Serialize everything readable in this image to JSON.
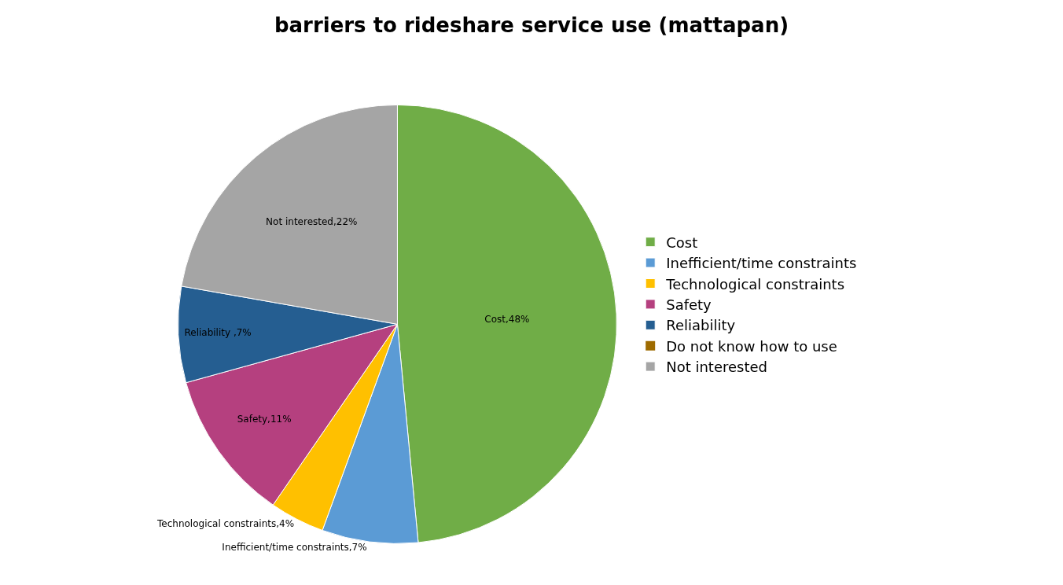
{
  "chart_data": {
    "type": "pie",
    "title": "barriers to rideshare service use (mattapan)",
    "categories": [
      "Cost",
      "Inefficient/time constraints",
      "Technological constraints",
      "Safety",
      "Reliability",
      "Do not know how to use",
      "Not interested"
    ],
    "values": [
      48,
      7,
      4,
      11,
      7,
      0,
      22
    ],
    "colors": [
      "#70ad47",
      "#5b9bd5",
      "#ffc000",
      "#b5407f",
      "#255e91",
      "#9e6b00",
      "#a5a5a5"
    ],
    "value_labels": [
      "Cost,48%",
      "Inefficient/time constraints,7%",
      "Technological constraints,4%",
      "Safety,11%",
      "Reliability ,7%",
      null,
      "Not interested,22%"
    ],
    "legend": "right"
  }
}
